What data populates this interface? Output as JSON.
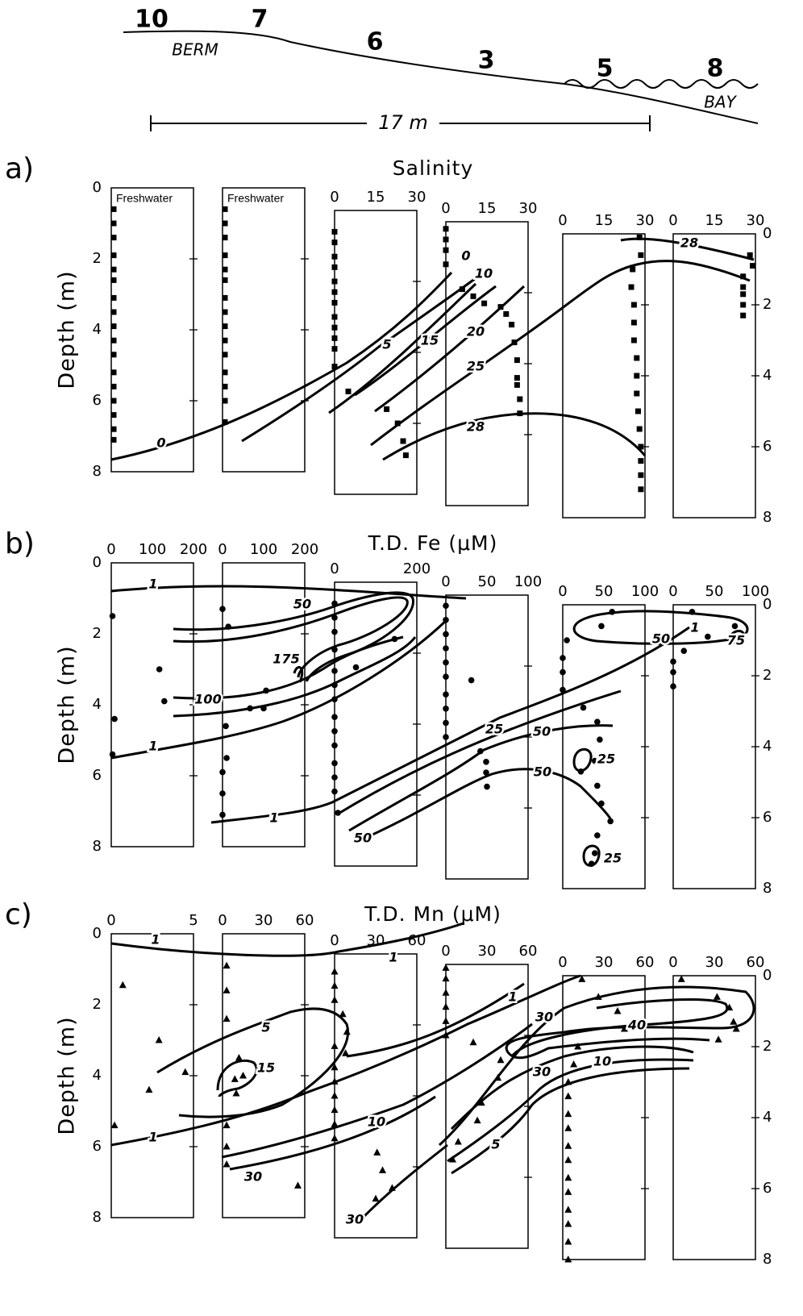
{
  "transect": {
    "stations": [
      "10",
      "7",
      "6",
      "3",
      "5",
      "8"
    ],
    "berm": "BERM",
    "bay": "BAY",
    "distance": "17 m"
  },
  "chart_data": [
    {
      "type": "profile",
      "label": "a)",
      "title": "Salinity",
      "y_label": "Depth (m)",
      "ylim": [
        0,
        8
      ],
      "yticks": [
        0,
        2,
        4,
        6,
        8
      ],
      "y2ticks": [
        0,
        2,
        4,
        6,
        8
      ],
      "marker": "square",
      "columns": [
        {
          "label": "Freshwater",
          "depth": [
            0.6,
            1.0,
            1.4,
            1.9,
            2.3,
            2.6,
            3.1,
            3.5,
            3.9,
            4.3,
            4.7,
            5.2,
            5.6,
            6.0,
            6.4,
            6.8,
            7.1
          ]
        },
        {
          "label": "Freshwater",
          "depth": [
            0.6,
            1.0,
            1.4,
            1.9,
            2.3,
            2.6,
            3.1,
            3.5,
            3.9,
            4.3,
            4.7,
            5.2,
            5.6,
            6.0,
            6.6
          ]
        },
        {
          "xlim": [
            0,
            30
          ],
          "xticks": [
            0,
            15,
            30
          ],
          "depth": [
            0.6,
            0.9,
            1.3,
            1.6,
            2.0,
            2.3,
            2.6,
            3.0,
            3.3,
            3.6,
            3.9,
            4.4,
            5.1,
            5.6,
            6.0,
            6.5,
            6.9
          ],
          "values": [
            0,
            0,
            0,
            0,
            0,
            0,
            0,
            0,
            0,
            0,
            0,
            0,
            5,
            19,
            23,
            25,
            26
          ]
        },
        {
          "xlim": [
            0,
            30
          ],
          "xticks": [
            0,
            15,
            30
          ],
          "depth": [
            0.2,
            0.5,
            0.8,
            1.2,
            1.9,
            2.1,
            2.3,
            2.4,
            2.6,
            2.9,
            3.4,
            3.9,
            4.4,
            4.6,
            5.0,
            5.4
          ],
          "values": [
            0,
            0,
            0,
            0,
            6,
            10,
            14,
            20,
            22,
            24,
            25,
            26,
            26,
            26,
            27,
            27
          ]
        },
        {
          "xlim": [
            0,
            30
          ],
          "xticks": [
            0,
            15,
            30
          ],
          "depth": [
            0.1,
            0.6,
            1.0,
            1.5,
            2.0,
            2.5,
            3.0,
            3.5,
            4.0,
            4.5,
            5.0,
            5.5,
            6.0,
            6.4,
            6.8,
            7.2
          ],
          "values": [
            28,
            28.5,
            25.5,
            25,
            26,
            26,
            26,
            27,
            27,
            27,
            27.5,
            28,
            28.5,
            28.5,
            28.5,
            28.5
          ]
        },
        {
          "xlim": [
            0,
            30
          ],
          "xticks": [
            0,
            15,
            30
          ],
          "depth": [
            0.6,
            0.9,
            1.2,
            1.5,
            1.7,
            2.0,
            2.3
          ],
          "values": [
            28,
            29,
            25.5,
            25.5,
            25.5,
            25.5,
            25.5
          ]
        }
      ],
      "contour_labels": [
        0,
        0,
        5,
        10,
        15,
        20,
        25,
        28,
        28
      ]
    },
    {
      "type": "profile",
      "label": "b)",
      "title": "T.D. Fe (μM)",
      "y_label": "Depth (m)",
      "ylim": [
        0,
        8
      ],
      "yticks": [
        0,
        2,
        4,
        6,
        8
      ],
      "y2ticks": [
        0,
        2,
        4,
        6,
        8
      ],
      "marker": "circle",
      "columns": [
        {
          "xlim": [
            0,
            200
          ],
          "xticks": [
            0,
            100,
            200
          ],
          "depth": [
            1.5,
            3.0,
            3.9,
            4.4,
            5.4
          ],
          "values": [
            3,
            117,
            129,
            8,
            3
          ]
        },
        {
          "xlim": [
            0,
            200
          ],
          "xticks": [
            0,
            100,
            200
          ],
          "depth": [
            1.3,
            1.8,
            3.6,
            4.1,
            4.1,
            4.6,
            5.5,
            5.9,
            6.5,
            7.1
          ],
          "values": [
            0,
            14,
            106,
            100,
            67,
            8,
            10,
            0,
            0,
            0
          ]
        },
        {
          "xlim": [
            0,
            200
          ],
          "xticks": [
            0,
            200
          ],
          "depth": [
            0.6,
            1.0,
            1.4,
            1.6,
            1.9,
            2.4,
            2.5,
            2.9,
            3.3,
            3.8,
            4.2,
            4.6,
            5.1,
            5.5,
            5.9,
            6.5
          ],
          "values": [
            0,
            0,
            0,
            146,
            0,
            52,
            0,
            0,
            0,
            0,
            0,
            0,
            0,
            0,
            0,
            8
          ]
        },
        {
          "xlim": [
            0,
            100
          ],
          "xticks": [
            0,
            50,
            100
          ],
          "depth": [
            0.3,
            0.7,
            1.1,
            1.5,
            1.9,
            2.4,
            2.3,
            2.8,
            3.2,
            3.6,
            4.0,
            4.4,
            4.7,
            5.0,
            5.4
          ],
          "values": [
            0,
            0,
            0,
            0,
            0,
            31,
            0,
            0,
            0,
            0,
            0,
            42,
            49,
            49,
            50
          ]
        },
        {
          "xlim": [
            0,
            100
          ],
          "xticks": [
            0,
            50,
            100
          ],
          "depth": [
            0.2,
            0.6,
            1.0,
            1.5,
            1.9,
            2.4,
            2.9,
            3.3,
            3.8,
            4.4,
            4.7,
            5.1,
            5.6,
            6.1,
            6.5,
            7.0,
            7.3
          ],
          "values": [
            60,
            47,
            5,
            0,
            0,
            0,
            25,
            42,
            45,
            39,
            22,
            42,
            47,
            58,
            42,
            39,
            35
          ]
        },
        {
          "xlim": [
            0,
            100
          ],
          "xticks": [
            0,
            50,
            100
          ],
          "depth": [
            0.2,
            0.6,
            0.9,
            1.3,
            1.6,
            1.9,
            2.3
          ],
          "values": [
            23,
            75,
            42,
            13,
            0,
            0,
            0
          ]
        }
      ],
      "contour_labels": [
        1,
        50,
        175,
        100,
        1,
        1,
        50,
        25,
        50,
        50,
        25,
        25,
        50,
        75,
        1
      ]
    },
    {
      "type": "profile",
      "label": "c)",
      "title": "T.D. Mn (μM)",
      "y_label": "Depth (m)",
      "ylim": [
        0,
        8
      ],
      "yticks": [
        0,
        2,
        4,
        6,
        8
      ],
      "y2ticks": [
        0,
        2,
        4,
        6,
        8
      ],
      "marker": "triangle",
      "columns": [
        {
          "xlim": [
            0,
            5
          ],
          "xticks": [
            0,
            5
          ],
          "depth": [
            1.45,
            3.0,
            3.9,
            4.4,
            5.4
          ],
          "values": [
            0.7,
            2.9,
            4.5,
            2.3,
            0.2
          ]
        },
        {
          "xlim": [
            0,
            60
          ],
          "xticks": [
            0,
            30,
            60
          ],
          "depth": [
            0.9,
            1.6,
            2.4,
            3.5,
            4.0,
            4.1,
            4.5,
            5.4,
            6.0,
            6.5,
            7.1
          ],
          "values": [
            3,
            3,
            3,
            12,
            15,
            9,
            10,
            3,
            3,
            3,
            55
          ]
        },
        {
          "xlim": [
            0,
            60
          ],
          "xticks": [
            0,
            30,
            60
          ],
          "depth": [
            0.5,
            0.9,
            1.3,
            1.7,
            2.2,
            2.6,
            2.8,
            3.2,
            3.6,
            4.0,
            4.4,
            4.8,
            5.2,
            5.6,
            6.1,
            6.6,
            6.9
          ],
          "values": [
            0,
            0,
            0,
            6,
            9,
            0,
            8,
            0,
            0,
            0,
            0,
            0,
            0,
            31,
            35,
            42,
            30
          ]
        },
        {
          "xlim": [
            0,
            60
          ],
          "xticks": [
            0,
            30,
            60
          ],
          "depth": [
            0.1,
            0.4,
            0.8,
            1.2,
            1.6,
            2.0,
            2.2,
            2.7,
            3.2,
            3.9,
            4.4,
            5.0,
            5.5
          ],
          "values": [
            0,
            0,
            0,
            0,
            0,
            0,
            20,
            40,
            38,
            26,
            23,
            9,
            5
          ]
        },
        {
          "xlim": [
            0,
            60
          ],
          "xticks": [
            0,
            30,
            60
          ],
          "depth": [
            0.1,
            0.6,
            1.0,
            1.5,
            2.0,
            2.5,
            3.0,
            3.4,
            3.9,
            4.3,
            4.8,
            5.2,
            5.7,
            6.1,
            6.6,
            7.0,
            7.5,
            8.0
          ],
          "values": [
            14,
            26,
            40,
            45,
            11,
            8,
            4,
            4,
            4,
            4,
            4,
            4,
            4,
            4,
            4,
            4,
            4,
            4
          ]
        },
        {
          "xlim": [
            0,
            60
          ],
          "xticks": [
            0,
            30,
            60
          ],
          "depth": [
            0.1,
            0.6,
            0.9,
            1.3,
            1.5,
            1.8
          ],
          "values": [
            6,
            32,
            41,
            44,
            46,
            33
          ]
        }
      ],
      "contour_labels": [
        1,
        1,
        1,
        5,
        15,
        1,
        30,
        10,
        30,
        30,
        40,
        30,
        10,
        5
      ]
    }
  ]
}
